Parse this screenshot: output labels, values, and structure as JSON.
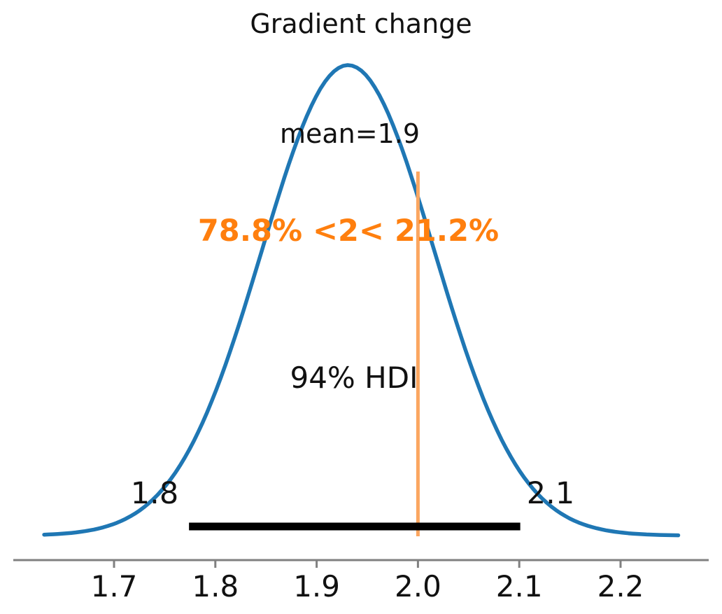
{
  "chart_data": {
    "type": "kde",
    "title": "Gradient change",
    "annotations": {
      "mean_label": "mean=1.9",
      "ref_val_label": "78.8% <2< 21.2%",
      "hdi_label": "94% HDI"
    },
    "point_estimate": {
      "statistic": "mean",
      "value": 1.9
    },
    "hdi": {
      "prob": 0.94,
      "lower": 1.774,
      "upper": 2.101,
      "label_lower": "1.8",
      "label_upper": "2.1"
    },
    "ref_value": {
      "value": 2,
      "pct_below": 78.8,
      "pct_above": 21.2
    },
    "curve": {
      "shape": "gaussian",
      "peak_x": 1.931,
      "sigma": 0.085,
      "x_start": 1.631,
      "x_end": 2.257,
      "peak_height": 1.0
    },
    "x_axis": {
      "ticks": [
        1.7,
        1.8,
        1.9,
        2.0,
        2.1,
        2.2
      ],
      "tick_labels": [
        "1.7",
        "1.8",
        "1.9",
        "2.0",
        "2.1",
        "2.2"
      ],
      "xlim": [
        1.6,
        2.29
      ]
    },
    "legend": null,
    "grid": false,
    "colors": {
      "curve": "#1f77b4",
      "ref_line": "#fba660",
      "ref_text": "#ff7f0e",
      "hdi_bar": "#000000",
      "axis": "#808080",
      "text": "#111111"
    }
  }
}
